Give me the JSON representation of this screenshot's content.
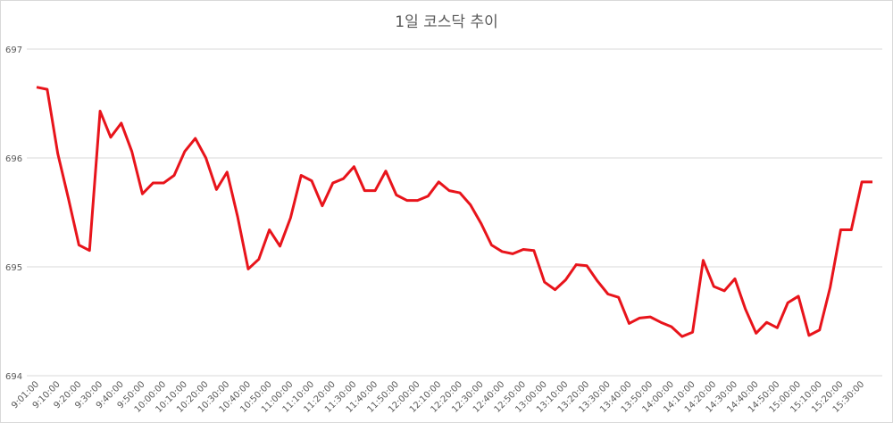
{
  "chart_data": {
    "type": "line",
    "title": "1일 코스닥 추이",
    "categories": [
      "9:01:00",
      null,
      "9:10:00",
      null,
      "9:20:00",
      null,
      "9:30:00",
      null,
      "9:40:00",
      null,
      "9:50:00",
      null,
      "10:00:00",
      null,
      "10:10:00",
      null,
      "10:20:00",
      null,
      "10:30:00",
      null,
      "10:40:00",
      null,
      "10:50:00",
      null,
      "11:00:00",
      null,
      "11:10:00",
      null,
      "11:20:00",
      null,
      "11:30:00",
      null,
      "11:40:00",
      null,
      "11:50:00",
      null,
      "12:00:00",
      null,
      "12:10:00",
      null,
      "12:20:00",
      null,
      "12:30:00",
      null,
      "12:40:00",
      null,
      "12:50:00",
      null,
      "13:00:00",
      null,
      "13:10:00",
      null,
      "13:20:00",
      null,
      "13:30:00",
      null,
      "13:40:00",
      null,
      "13:50:00",
      null,
      "14:00:00",
      null,
      "14:10:00",
      null,
      "14:20:00",
      null,
      "14:30:00",
      null,
      "14:40:00",
      null,
      "14:50:00",
      null,
      "15:00:00",
      null,
      "15:10:00",
      null,
      "15:20:00",
      null,
      "15:30:00",
      null
    ],
    "series": [
      {
        "color": "#e8141b",
        "values": [
          696.65,
          696.63,
          696.04,
          695.63,
          695.2,
          695.15,
          696.43,
          696.19,
          696.32,
          696.06,
          695.67,
          695.77,
          695.77,
          695.84,
          696.06,
          696.18,
          696.0,
          695.71,
          695.87,
          695.46,
          694.98,
          695.07,
          695.34,
          695.19,
          695.45,
          695.84,
          695.79,
          695.56,
          695.77,
          695.81,
          695.92,
          695.7,
          695.7,
          695.88,
          695.66,
          695.61,
          695.61,
          695.65,
          695.78,
          695.7,
          695.68,
          695.57,
          695.4,
          695.2,
          695.14,
          695.12,
          695.16,
          695.15,
          694.86,
          694.79,
          694.88,
          695.02,
          695.01,
          694.87,
          694.75,
          694.72,
          694.48,
          694.53,
          694.54,
          694.49,
          694.45,
          694.36,
          694.4,
          695.06,
          694.82,
          694.78,
          694.89,
          694.61,
          694.39,
          694.49,
          694.44,
          694.67,
          694.73,
          694.37,
          694.42,
          694.81,
          695.34,
          695.34,
          695.78,
          695.78
        ]
      }
    ],
    "ylim": [
      694,
      697
    ],
    "yticks": [
      694,
      695,
      696,
      697
    ],
    "grid": true
  }
}
